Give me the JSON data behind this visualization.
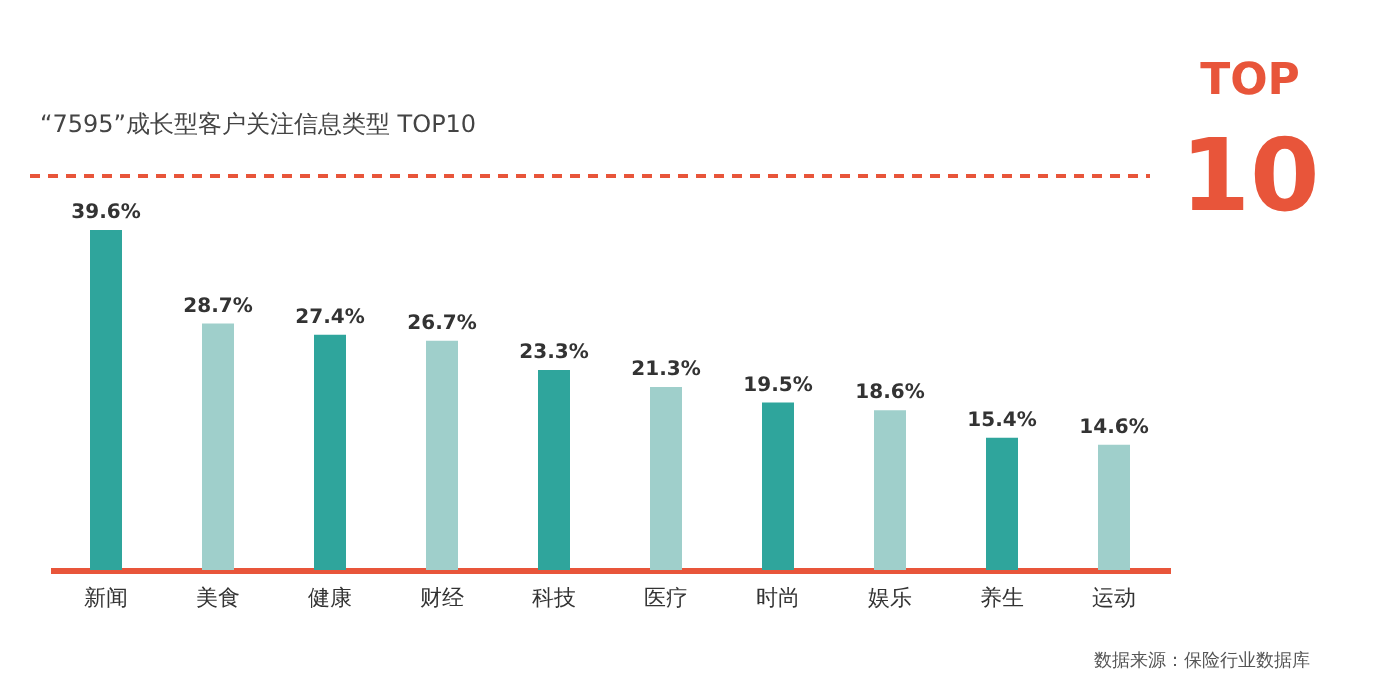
{
  "chart_data": {
    "type": "bar",
    "title": "“7595”成长型客户关注信息类型 TOP10",
    "categories": [
      "新闻",
      "美食",
      "健康",
      "财经",
      "科技",
      "医疗",
      "时尚",
      "娱乐",
      "养生",
      "运动"
    ],
    "values": [
      39.6,
      28.7,
      27.4,
      26.7,
      23.3,
      21.3,
      19.5,
      18.6,
      15.4,
      14.6
    ],
    "value_labels": [
      "39.6%",
      "28.7%",
      "27.4%",
      "26.7%",
      "23.3%",
      "21.3%",
      "19.5%",
      "18.6%",
      "15.4%",
      "14.6%"
    ],
    "colors": [
      "#2fa59c",
      "#9fcfcb",
      "#2fa59c",
      "#9fcfcb",
      "#2fa59c",
      "#9fcfcb",
      "#2fa59c",
      "#9fcfcb",
      "#2fa59c",
      "#9fcfcb"
    ],
    "annotations": [
      "TOP",
      "10",
      "数据来源：保险行业数据库"
    ],
    "grid": false
  }
}
